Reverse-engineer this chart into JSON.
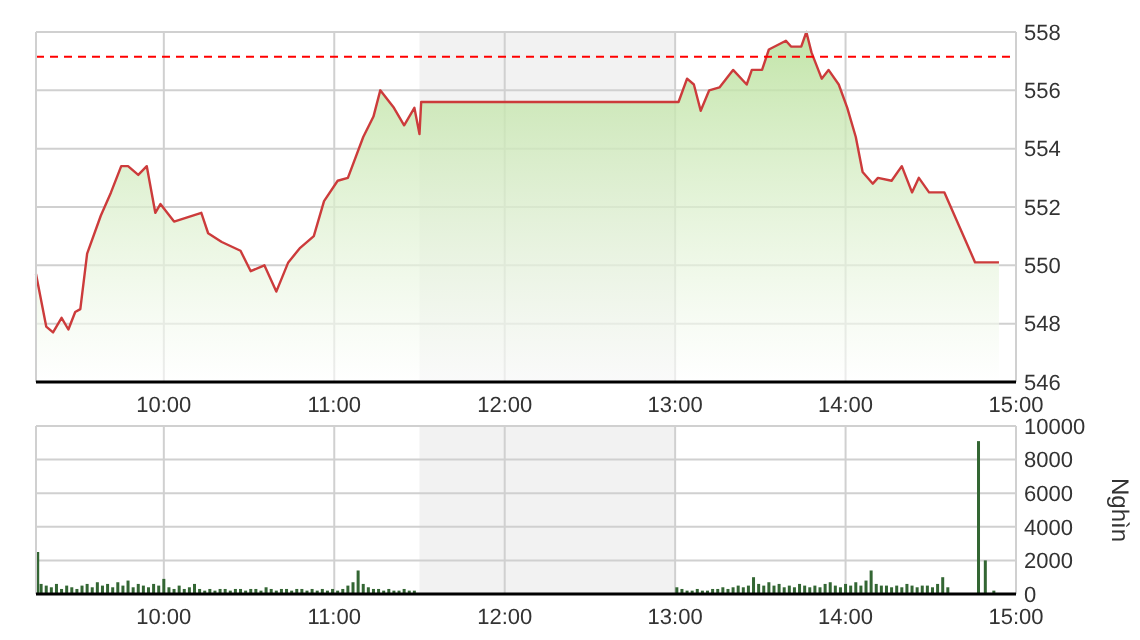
{
  "chart_data": [
    {
      "type": "area",
      "x": [
        9.25,
        9.31,
        9.35,
        9.4,
        9.44,
        9.48,
        9.51,
        9.55,
        9.63,
        9.69,
        9.75,
        9.79,
        9.85,
        9.9,
        9.95,
        9.98,
        10.06,
        10.22,
        10.26,
        10.34,
        10.45,
        10.51,
        10.59,
        10.66,
        10.73,
        10.8,
        10.88,
        10.94,
        11.02,
        11.08,
        11.17,
        11.23,
        11.27,
        11.35,
        11.41,
        11.47,
        11.5,
        11.51,
        13.02,
        13.07,
        13.11,
        13.15,
        13.2,
        13.26,
        13.3,
        13.34,
        13.42,
        13.45,
        13.51,
        13.55,
        13.65,
        13.68,
        13.74,
        13.77,
        13.8,
        13.86,
        13.9,
        13.96,
        14.01,
        14.06,
        14.1,
        14.16,
        14.19,
        14.27,
        14.33,
        14.39,
        14.43,
        14.49,
        14.58,
        14.76,
        14.9
      ],
      "series": [
        {
          "color": "#cc3b3b",
          "values": [
            549.7,
            547.9,
            547.7,
            548.2,
            547.8,
            548.4,
            548.5,
            550.4,
            551.7,
            552.5,
            553.4,
            553.4,
            553.1,
            553.4,
            551.8,
            552.1,
            551.5,
            551.8,
            551.1,
            550.8,
            550.5,
            549.8,
            550.0,
            549.1,
            550.1,
            550.6,
            551.0,
            552.2,
            552.9,
            553.0,
            554.4,
            555.1,
            556.0,
            555.4,
            554.8,
            555.4,
            554.5,
            555.6,
            555.6,
            556.4,
            556.2,
            555.3,
            556.0,
            556.1,
            556.4,
            556.7,
            556.2,
            556.7,
            556.7,
            557.4,
            557.7,
            557.5,
            557.5,
            558.0,
            557.3,
            556.4,
            556.7,
            556.2,
            555.4,
            554.4,
            553.2,
            552.8,
            553.0,
            552.9,
            553.4,
            552.5,
            553.0,
            552.5,
            552.5,
            550.1,
            550.1
          ]
        }
      ],
      "xlim": [
        9.25,
        15
      ],
      "ylim": [
        546,
        558
      ],
      "yticks": [
        546,
        548,
        550,
        552,
        554,
        556,
        558
      ],
      "xticks": [
        {
          "value": 10,
          "label": "10:00"
        },
        {
          "value": 11,
          "label": "11:00"
        },
        {
          "value": 12,
          "label": "12:00"
        },
        {
          "value": 13,
          "label": "13:00"
        },
        {
          "value": 14,
          "label": "14:00"
        },
        {
          "value": 15,
          "label": "15:00"
        }
      ],
      "grid": true,
      "ref_lines": [
        {
          "axis": "y",
          "value": 557.15,
          "color": "#ff0000",
          "line_style": "dashed"
        }
      ],
      "bands": [
        {
          "axis": "x",
          "from": 11.5,
          "to": 13,
          "color": "#f2f2f2"
        }
      ]
    },
    {
      "type": "bar",
      "x": [
        9.26,
        9.28,
        9.31,
        9.34,
        9.37,
        9.4,
        9.43,
        9.46,
        9.49,
        9.52,
        9.55,
        9.58,
        9.61,
        9.64,
        9.67,
        9.7,
        9.73,
        9.76,
        9.79,
        9.82,
        9.85,
        9.88,
        9.91,
        9.94,
        9.97,
        10.0,
        10.03,
        10.06,
        10.09,
        10.12,
        10.15,
        10.18,
        10.21,
        10.24,
        10.27,
        10.3,
        10.33,
        10.36,
        10.39,
        10.42,
        10.45,
        10.48,
        10.51,
        10.54,
        10.57,
        10.6,
        10.63,
        10.66,
        10.69,
        10.72,
        10.75,
        10.78,
        10.81,
        10.84,
        10.87,
        10.9,
        10.93,
        10.96,
        10.99,
        11.02,
        11.05,
        11.08,
        11.11,
        11.14,
        11.17,
        11.2,
        11.23,
        11.26,
        11.29,
        11.32,
        11.35,
        11.38,
        11.41,
        11.44,
        11.47,
        13.01,
        13.04,
        13.07,
        13.1,
        13.13,
        13.16,
        13.19,
        13.22,
        13.25,
        13.28,
        13.31,
        13.34,
        13.37,
        13.4,
        13.43,
        13.46,
        13.49,
        13.52,
        13.55,
        13.58,
        13.61,
        13.64,
        13.67,
        13.7,
        13.73,
        13.76,
        13.79,
        13.82,
        13.85,
        13.88,
        13.91,
        13.94,
        13.97,
        14.0,
        14.03,
        14.06,
        14.09,
        14.12,
        14.15,
        14.18,
        14.21,
        14.24,
        14.27,
        14.3,
        14.33,
        14.36,
        14.39,
        14.42,
        14.45,
        14.48,
        14.51,
        14.54,
        14.57,
        14.6,
        14.78,
        14.82,
        14.87
      ],
      "values": [
        2500,
        600,
        500,
        400,
        600,
        300,
        500,
        400,
        300,
        500,
        600,
        400,
        700,
        500,
        600,
        400,
        700,
        500,
        800,
        400,
        600,
        500,
        400,
        600,
        500,
        900,
        400,
        300,
        500,
        300,
        400,
        600,
        300,
        200,
        300,
        200,
        300,
        300,
        200,
        300,
        300,
        200,
        300,
        300,
        200,
        400,
        300,
        200,
        300,
        300,
        200,
        300,
        300,
        200,
        300,
        200,
        300,
        200,
        300,
        200,
        300,
        500,
        700,
        1400,
        600,
        400,
        300,
        300,
        200,
        300,
        200,
        200,
        300,
        200,
        200,
        400,
        300,
        200,
        200,
        300,
        200,
        200,
        300,
        300,
        400,
        300,
        400,
        500,
        400,
        500,
        1000,
        600,
        500,
        700,
        500,
        600,
        400,
        500,
        400,
        600,
        500,
        400,
        500,
        400,
        600,
        700,
        500,
        400,
        600,
        500,
        700,
        500,
        800,
        1400,
        600,
        500,
        500,
        400,
        500,
        400,
        600,
        500,
        400,
        500,
        500,
        400,
        600,
        1000,
        400,
        9100,
        2000,
        200
      ],
      "color": "#336633",
      "ylabel": "Nghìn",
      "xlim": [
        9.25,
        15
      ],
      "ylim": [
        0,
        10000
      ],
      "yticks": [
        0,
        2000,
        4000,
        6000,
        8000,
        10000
      ],
      "xticks": [
        {
          "value": 10,
          "label": "10:00"
        },
        {
          "value": 11,
          "label": "11:00"
        },
        {
          "value": 12,
          "label": "12:00"
        },
        {
          "value": 13,
          "label": "13:00"
        },
        {
          "value": 14,
          "label": "14:00"
        },
        {
          "value": 15,
          "label": "15:00"
        }
      ],
      "grid": true,
      "bands": [
        {
          "axis": "x",
          "from": 11.5,
          "to": 13,
          "color": "#f2f2f2"
        }
      ]
    }
  ]
}
